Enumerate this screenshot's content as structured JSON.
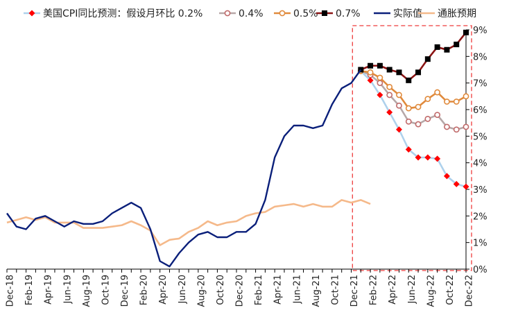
{
  "chart_data": {
    "type": "line",
    "title": "",
    "xlabel": "",
    "ylabel": "",
    "x": [
      "Dec-18",
      "Jan-19",
      "Feb-19",
      "Mar-19",
      "Apr-19",
      "May-19",
      "Jun-19",
      "Jul-19",
      "Aug-19",
      "Sep-19",
      "Oct-19",
      "Nov-19",
      "Dec-19",
      "Jan-20",
      "Feb-20",
      "Mar-20",
      "Apr-20",
      "May-20",
      "Jun-20",
      "Jul-20",
      "Aug-20",
      "Sep-20",
      "Oct-20",
      "Nov-20",
      "Dec-20",
      "Jan-21",
      "Feb-21",
      "Mar-21",
      "Apr-21",
      "May-21",
      "Jun-21",
      "Jul-21",
      "Aug-21",
      "Sep-21",
      "Oct-21",
      "Nov-21",
      "Dec-21",
      "Jan-22",
      "Feb-22",
      "Mar-22",
      "Apr-22",
      "May-22",
      "Jun-22",
      "Jul-22",
      "Aug-22",
      "Sep-22",
      "Oct-22",
      "Nov-22",
      "Dec-22"
    ],
    "x_tick_labels": [
      "Dec-18",
      "Feb-19",
      "Apr-19",
      "Jun-19",
      "Aug-19",
      "Oct-19",
      "Dec-19",
      "Feb-20",
      "Apr-20",
      "Jun-20",
      "Aug-20",
      "Oct-20",
      "Dec-20",
      "Feb-21",
      "Apr-21",
      "Jun-21",
      "Aug-21",
      "Oct-21",
      "Dec-21",
      "Feb-22",
      "Apr-22",
      "Jun-22",
      "Aug-22",
      "Oct-22",
      "Dec-22"
    ],
    "y_tick_labels": [
      "0%",
      "1%",
      "2%",
      "3%",
      "4%",
      "5%",
      "6%",
      "7%",
      "8%",
      "9%"
    ],
    "ylim": [
      0,
      9
    ],
    "y_unit": "%",
    "grid": false,
    "legend_position": "top",
    "highlight_region": {
      "from": "Jan-22",
      "to": "Dec-22",
      "style": "dashed",
      "color": "#ee3b3b"
    },
    "series": [
      {
        "name": "美国CPI同比预测：假设月环比 0.2%",
        "color": "#aed1ec",
        "marker": "diamond",
        "marker_color": "#ff0000",
        "x": [
          "Jan-22",
          "Feb-22",
          "Mar-22",
          "Apr-22",
          "May-22",
          "Jun-22",
          "Jul-22",
          "Aug-22",
          "Sep-22",
          "Oct-22",
          "Nov-22",
          "Dec-22"
        ],
        "values": [
          7.45,
          7.1,
          6.55,
          5.9,
          5.25,
          4.5,
          4.2,
          4.2,
          4.15,
          3.5,
          3.2,
          3.1
        ]
      },
      {
        "name": "0.4%",
        "color": "#b7a8a8",
        "marker": "circle",
        "marker_color": "#c06a6a",
        "x": [
          "Jan-22",
          "Feb-22",
          "Mar-22",
          "Apr-22",
          "May-22",
          "Jun-22",
          "Jul-22",
          "Aug-22",
          "Sep-22",
          "Oct-22",
          "Nov-22",
          "Dec-22"
        ],
        "values": [
          7.45,
          7.3,
          7.0,
          6.55,
          6.15,
          5.55,
          5.45,
          5.65,
          5.8,
          5.35,
          5.25,
          5.35
        ]
      },
      {
        "name": "0.5%",
        "color": "#e08a3c",
        "marker": "circle",
        "marker_color": "#e08a3c",
        "x": [
          "Jan-22",
          "Feb-22",
          "Mar-22",
          "Apr-22",
          "May-22",
          "Jun-22",
          "Jul-22",
          "Aug-22",
          "Sep-22",
          "Oct-22",
          "Nov-22",
          "Dec-22"
        ],
        "values": [
          7.45,
          7.4,
          7.2,
          6.85,
          6.55,
          6.05,
          6.1,
          6.4,
          6.65,
          6.3,
          6.3,
          6.5
        ]
      },
      {
        "name": "0.7%",
        "color": "#8b1414",
        "marker": "square",
        "marker_color": "#000000",
        "x": [
          "Jan-22",
          "Feb-22",
          "Mar-22",
          "Apr-22",
          "May-22",
          "Jun-22",
          "Jul-22",
          "Aug-22",
          "Sep-22",
          "Oct-22",
          "Nov-22",
          "Dec-22"
        ],
        "values": [
          7.5,
          7.65,
          7.65,
          7.5,
          7.4,
          7.1,
          7.4,
          7.9,
          8.35,
          8.25,
          8.45,
          8.9
        ]
      },
      {
        "name": "实际值",
        "color": "#0a1f7a",
        "marker": "none",
        "x": [
          "Dec-18",
          "Jan-19",
          "Feb-19",
          "Mar-19",
          "Apr-19",
          "May-19",
          "Jun-19",
          "Jul-19",
          "Aug-19",
          "Sep-19",
          "Oct-19",
          "Nov-19",
          "Dec-19",
          "Jan-20",
          "Feb-20",
          "Mar-20",
          "Apr-20",
          "May-20",
          "Jun-20",
          "Jul-20",
          "Aug-20",
          "Sep-20",
          "Oct-20",
          "Nov-20",
          "Dec-20",
          "Jan-21",
          "Feb-21",
          "Mar-21",
          "Apr-21",
          "May-21",
          "Jun-21",
          "Jul-21",
          "Aug-21",
          "Sep-21",
          "Oct-21",
          "Nov-21",
          "Dec-21",
          "Jan-22"
        ],
        "values": [
          2.1,
          1.6,
          1.5,
          1.9,
          2.0,
          1.8,
          1.6,
          1.8,
          1.7,
          1.7,
          1.8,
          2.1,
          2.3,
          2.5,
          2.3,
          1.5,
          0.3,
          0.1,
          0.6,
          1.0,
          1.3,
          1.4,
          1.2,
          1.2,
          1.4,
          1.4,
          1.7,
          2.6,
          4.2,
          5.0,
          5.4,
          5.4,
          5.3,
          5.4,
          6.2,
          6.8,
          7.0,
          7.5
        ]
      },
      {
        "name": "通胀预期",
        "color": "#f5b98a",
        "marker": "none",
        "x": [
          "Dec-18",
          "Jan-19",
          "Feb-19",
          "Mar-19",
          "Apr-19",
          "May-19",
          "Jun-19",
          "Jul-19",
          "Aug-19",
          "Sep-19",
          "Oct-19",
          "Nov-19",
          "Dec-19",
          "Jan-20",
          "Feb-20",
          "Mar-20",
          "Apr-20",
          "May-20",
          "Jun-20",
          "Jul-20",
          "Aug-20",
          "Sep-20",
          "Oct-20",
          "Nov-20",
          "Dec-20",
          "Jan-21",
          "Feb-21",
          "Mar-21",
          "Apr-21",
          "May-21",
          "Jun-21",
          "Jul-21",
          "Aug-21",
          "Sep-21",
          "Oct-21",
          "Nov-21",
          "Dec-21",
          "Jan-22",
          "Feb-22"
        ],
        "values": [
          1.75,
          1.85,
          1.95,
          1.85,
          1.95,
          1.75,
          1.75,
          1.75,
          1.55,
          1.55,
          1.55,
          1.6,
          1.65,
          1.8,
          1.65,
          1.45,
          0.9,
          1.1,
          1.15,
          1.4,
          1.55,
          1.8,
          1.65,
          1.75,
          1.8,
          2.0,
          2.1,
          2.15,
          2.35,
          2.4,
          2.45,
          2.35,
          2.45,
          2.35,
          2.35,
          2.6,
          2.5,
          2.6,
          2.45
        ]
      }
    ]
  }
}
